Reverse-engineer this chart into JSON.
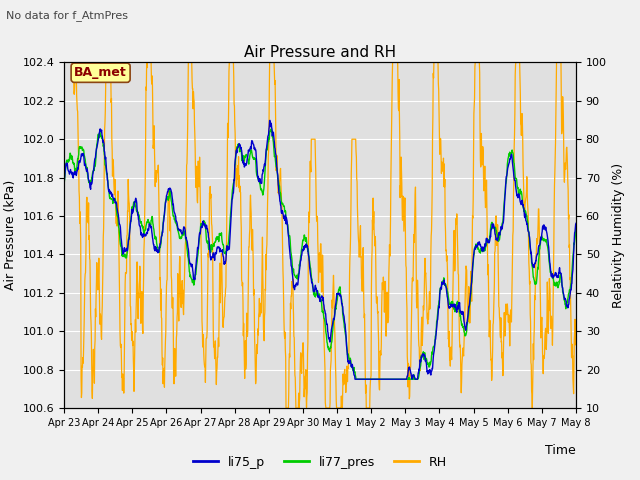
{
  "title": "Air Pressure and RH",
  "top_left_text": "No data for f_AtmPres",
  "xlabel": "Time",
  "ylabel_left": "Air Pressure (kPa)",
  "ylabel_right": "Relativity Humidity (%)",
  "ylim_left": [
    100.6,
    102.4
  ],
  "ylim_right": [
    10,
    100
  ],
  "yticks_left": [
    100.6,
    100.8,
    101.0,
    101.2,
    101.4,
    101.6,
    101.8,
    102.0,
    102.2,
    102.4
  ],
  "yticks_right": [
    10,
    20,
    30,
    40,
    50,
    60,
    70,
    80,
    90,
    100
  ],
  "xtick_labels": [
    "Apr 23",
    "Apr 24",
    "Apr 25",
    "Apr 26",
    "Apr 27",
    "Apr 28",
    "Apr 29",
    "Apr 30",
    "May 1",
    "May 2",
    "May 3",
    "May 4",
    "May 5",
    "May 6",
    "May 7",
    "May 8"
  ],
  "background_color": "#f0f0f0",
  "plot_bg_color": "#e0e0e0",
  "grid_color": "#ffffff",
  "color_li75_p": "#0000cc",
  "color_li77_pres": "#00cc00",
  "color_RH": "#ffaa00",
  "legend_label_li75": "li75_p",
  "legend_label_li77": "li77_pres",
  "legend_label_RH": "RH",
  "ba_met_text": "BA_met",
  "ba_met_color": "#8b0000",
  "ba_met_bg": "#ffff99",
  "ba_met_border": "#8b4513"
}
